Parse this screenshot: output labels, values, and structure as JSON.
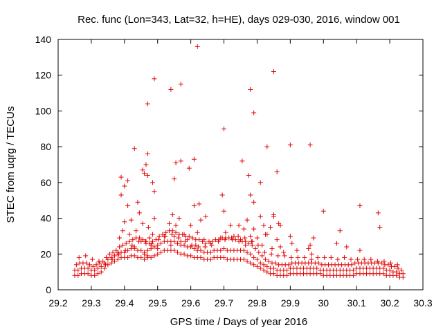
{
  "chart_data": {
    "type": "scatter",
    "title": "Rec. func (Lon=343, Lat=32, h=HE), days 029-030, 2016, window 001",
    "xlabel": "GPS time / Days of year 2016",
    "ylabel": "STEC from uqrg / TECUs",
    "xlim": [
      29.2,
      30.3
    ],
    "ylim": [
      0,
      140
    ],
    "xticks": [
      "29.2",
      "29.3",
      "29.4",
      "29.5",
      "29.6",
      "29.7",
      "29.8",
      "29.9",
      "30",
      "30.1",
      "30.2",
      "30.3"
    ],
    "yticks": [
      "0",
      "20",
      "40",
      "60",
      "80",
      "100",
      "120",
      "140"
    ],
    "grid": false,
    "marker": "+",
    "color": "#e00000",
    "series": [
      {
        "name": "STEC",
        "x": [
          29.25,
          29.26,
          29.27,
          29.28,
          29.29,
          29.3,
          29.31,
          29.32,
          29.33,
          29.34,
          29.35,
          29.36,
          29.37,
          29.38,
          29.39,
          29.4,
          29.41,
          29.42,
          29.43,
          29.44,
          29.45,
          29.46,
          29.47,
          29.48,
          29.49,
          29.5,
          29.51,
          29.52,
          29.53,
          29.54,
          29.55,
          29.56,
          29.57,
          29.58,
          29.59,
          29.6,
          29.61,
          29.62,
          29.63,
          29.64,
          29.65,
          29.66,
          29.67,
          29.68,
          29.69,
          29.7,
          29.71,
          29.72,
          29.73,
          29.74,
          29.75,
          29.76,
          29.77,
          29.78,
          29.79,
          29.8,
          29.81,
          29.82,
          29.83,
          29.84,
          29.85,
          29.86,
          29.87,
          29.88,
          29.89,
          29.9,
          29.91,
          29.92,
          29.93,
          29.94,
          29.95,
          29.96,
          29.97,
          29.98,
          29.99,
          30.0,
          30.01,
          30.02,
          30.03,
          30.04,
          30.05,
          30.06,
          30.07,
          30.08,
          30.09,
          30.1,
          30.11,
          30.12,
          30.13,
          30.14,
          30.15,
          30.16,
          30.17,
          30.18,
          30.19,
          30.2,
          30.21,
          30.22,
          30.23,
          30.24,
          29.25,
          29.26,
          29.27,
          29.28,
          29.29,
          29.3,
          29.31,
          29.32,
          29.33,
          29.34,
          29.35,
          29.36,
          29.37,
          29.38,
          29.39,
          29.4,
          29.41,
          29.42,
          29.43,
          29.44,
          29.45,
          29.46,
          29.47,
          29.48,
          29.49,
          29.5,
          29.51,
          29.52,
          29.53,
          29.54,
          29.55,
          29.56,
          29.57,
          29.58,
          29.59,
          29.6,
          29.61,
          29.62,
          29.63,
          29.64,
          29.65,
          29.66,
          29.67,
          29.68,
          29.69,
          29.7,
          29.71,
          29.72,
          29.73,
          29.74,
          29.75,
          29.76,
          29.77,
          29.78,
          29.79,
          29.8,
          29.81,
          29.82,
          29.83,
          29.84,
          29.85,
          29.86,
          29.87,
          29.88,
          29.89,
          29.9,
          29.91,
          29.92,
          29.93,
          29.94,
          29.95,
          29.96,
          29.97,
          29.98,
          29.99,
          30.0,
          30.01,
          30.02,
          30.03,
          30.04,
          30.05,
          30.06,
          30.07,
          30.08,
          30.09,
          30.1,
          30.11,
          30.12,
          30.13,
          30.14,
          30.15,
          30.16,
          30.17,
          30.18,
          30.19,
          30.2,
          30.21,
          30.22,
          30.23,
          30.24,
          29.255,
          29.265,
          29.275,
          29.285,
          29.295,
          29.305,
          29.315,
          29.325,
          29.335,
          29.345,
          29.355,
          29.365,
          29.375,
          29.385,
          29.395,
          29.405,
          29.415,
          29.425,
          29.435,
          29.445,
          29.455,
          29.465,
          29.475,
          29.485,
          29.495,
          29.505,
          29.515,
          29.525,
          29.535,
          29.545,
          29.555,
          29.565,
          29.575,
          29.585,
          29.595,
          29.605,
          29.615,
          29.625,
          29.635,
          29.645,
          29.655,
          29.665,
          29.675,
          29.685,
          29.695,
          29.705,
          29.715,
          29.725,
          29.735,
          29.745,
          29.755,
          29.765,
          29.775,
          29.785,
          29.795,
          29.805,
          29.815,
          29.825,
          29.835,
          29.845,
          29.855,
          29.865,
          29.875,
          29.885,
          29.895,
          29.905,
          29.915,
          29.925,
          29.935,
          29.945,
          29.955,
          29.965,
          29.975,
          29.985,
          29.995,
          30.005,
          30.015,
          30.025,
          30.035,
          30.045,
          30.055,
          30.065,
          30.075,
          30.085,
          30.095,
          30.105,
          30.115,
          30.125,
          30.135,
          30.145,
          30.155,
          30.165,
          30.175,
          30.185,
          30.195,
          30.205,
          30.215,
          30.225,
          30.235,
          29.263,
          29.283,
          29.303,
          29.323,
          29.343,
          29.363,
          29.383,
          29.403,
          29.423,
          29.443,
          29.463,
          29.483,
          29.503,
          29.523,
          29.543,
          29.563,
          29.583,
          29.603,
          29.623,
          29.643,
          29.663,
          29.683,
          29.703,
          29.723,
          29.743,
          29.763,
          29.783,
          29.803,
          29.823,
          29.843,
          29.863,
          29.883,
          29.903,
          29.923,
          29.943,
          29.963,
          29.983,
          30.003,
          30.023,
          30.043,
          30.063,
          30.083,
          30.103,
          30.123,
          30.143,
          30.163,
          30.183,
          30.203,
          30.223,
          29.38,
          29.385,
          29.395,
          29.4,
          29.41,
          29.415,
          29.42,
          29.43,
          29.435,
          29.44,
          29.445,
          29.45,
          29.455,
          29.46,
          29.465,
          29.47,
          29.472,
          29.475,
          29.48,
          29.485,
          29.49,
          29.5,
          29.52,
          29.535,
          29.54,
          29.55,
          29.555,
          29.56,
          29.565,
          29.57,
          29.58,
          29.59,
          29.6,
          29.605,
          29.61,
          29.615,
          29.62,
          29.63,
          29.64,
          29.66,
          29.69,
          29.7,
          29.705,
          29.72,
          29.73,
          29.745,
          29.75,
          29.76,
          29.765,
          29.77,
          29.78,
          29.785,
          29.79,
          29.8,
          29.81,
          29.815,
          29.82,
          29.83,
          29.84,
          29.845,
          29.85,
          29.86,
          29.865,
          29.87,
          29.88,
          29.9,
          29.905,
          29.92,
          29.955,
          29.96,
          29.965,
          29.97,
          30.04,
          30.05,
          30.07,
          30.11,
          30.17,
          29.455,
          29.47,
          29.485,
          29.545,
          29.57,
          29.625,
          29.78,
          29.85
        ],
        "y": [
          8,
          8,
          9,
          9,
          9,
          8,
          8,
          9,
          10,
          12,
          14,
          15,
          16,
          17,
          18,
          18,
          18,
          19,
          19,
          18,
          18,
          17,
          18,
          18,
          19,
          20,
          21,
          22,
          22,
          22,
          22,
          21,
          20,
          20,
          19,
          19,
          18,
          18,
          18,
          17,
          17,
          17,
          18,
          18,
          18,
          18,
          17,
          17,
          17,
          17,
          17,
          17,
          16,
          15,
          14,
          13,
          12,
          11,
          10,
          9,
          9,
          8,
          8,
          8,
          8,
          9,
          9,
          9,
          9,
          9,
          9,
          9,
          9,
          9,
          9,
          8,
          8,
          8,
          8,
          8,
          8,
          8,
          8,
          8,
          8,
          9,
          9,
          9,
          9,
          9,
          9,
          9,
          9,
          9,
          8,
          8,
          8,
          8,
          7,
          7,
          11,
          11,
          12,
          12,
          12,
          11,
          11,
          12,
          13,
          15,
          17,
          18,
          19,
          20,
          21,
          21,
          22,
          23,
          23,
          22,
          22,
          21,
          22,
          23,
          24,
          25,
          26,
          27,
          27,
          27,
          27,
          26,
          25,
          25,
          24,
          24,
          23,
          22,
          22,
          21,
          21,
          21,
          22,
          22,
          22,
          23,
          22,
          22,
          22,
          22,
          22,
          22,
          21,
          20,
          18,
          17,
          15,
          14,
          13,
          12,
          12,
          11,
          11,
          11,
          11,
          12,
          12,
          12,
          12,
          12,
          12,
          12,
          12,
          12,
          11,
          11,
          11,
          11,
          11,
          11,
          11,
          11,
          11,
          11,
          11,
          12,
          12,
          12,
          12,
          12,
          12,
          12,
          12,
          12,
          11,
          11,
          10,
          10,
          9,
          9,
          14,
          15,
          15,
          15,
          14,
          13,
          14,
          15,
          16,
          18,
          20,
          21,
          22,
          24,
          25,
          26,
          27,
          28,
          29,
          29,
          28,
          27,
          26,
          27,
          28,
          30,
          31,
          32,
          33,
          33,
          32,
          31,
          31,
          30,
          30,
          29,
          28,
          28,
          27,
          26,
          27,
          27,
          28,
          28,
          29,
          29,
          29,
          28,
          28,
          27,
          27,
          27,
          26,
          25,
          23,
          21,
          19,
          17,
          16,
          15,
          15,
          14,
          14,
          14,
          14,
          15,
          15,
          15,
          15,
          15,
          15,
          15,
          15,
          15,
          14,
          14,
          14,
          14,
          14,
          14,
          14,
          14,
          14,
          14,
          15,
          15,
          15,
          15,
          15,
          15,
          15,
          15,
          15,
          14,
          14,
          13,
          13,
          12,
          11,
          18,
          19,
          17,
          16,
          14,
          17,
          20,
          22,
          25,
          27,
          27,
          26,
          28,
          30,
          31,
          29,
          27,
          25,
          24,
          24,
          25,
          27,
          28,
          29,
          30,
          29,
          27,
          25,
          21,
          20,
          19,
          19,
          18,
          18,
          18,
          17,
          18,
          18,
          18,
          17,
          18,
          17,
          17,
          17,
          17,
          16,
          16,
          15,
          14,
          21,
          29,
          33,
          38,
          47,
          31,
          39,
          24,
          33,
          49,
          43,
          27,
          37,
          20,
          26,
          19,
          35,
          29,
          25,
          31,
          40,
          23,
          30,
          37,
          25,
          30,
          36,
          26,
          40,
          27,
          31,
          28,
          36,
          29,
          47,
          25,
          32,
          39,
          28,
          26,
          29,
          44,
          32,
          36,
          30,
          36,
          28,
          34,
          25,
          39,
          30,
          27,
          34,
          29,
          41,
          25,
          36,
          31,
          35,
          23,
          41,
          28,
          37,
          24,
          21,
          30,
          26,
          22,
          23,
          25,
          20,
          29,
          26,
          33,
          24,
          22,
          35,
          67,
          64,
          60,
          42,
          72,
          48,
          53,
          42
        ]
      }
    ],
    "outliers": {
      "x": [
        29.39,
        29.43,
        29.47,
        29.49,
        29.54,
        29.57,
        29.62,
        29.7,
        29.78,
        29.79,
        29.81,
        29.83,
        29.85,
        29.86,
        29.9,
        29.96,
        29.46,
        29.47,
        29.4,
        29.39,
        29.41,
        29.555,
        29.595,
        29.61,
        29.645,
        29.695,
        29.755,
        29.775,
        29.79,
        29.825,
        29.87,
        30.0,
        30.11,
        30.165,
        29.465,
        29.55,
        29.49
      ],
      "y": [
        63,
        79,
        104,
        118,
        112,
        115,
        136,
        90,
        112,
        99,
        60,
        80,
        122,
        66,
        81,
        81,
        65,
        76,
        58,
        53,
        61,
        71,
        68,
        73,
        41,
        53,
        72,
        64,
        49,
        31,
        36,
        44,
        47,
        43,
        70,
        62,
        55
      ]
    }
  }
}
